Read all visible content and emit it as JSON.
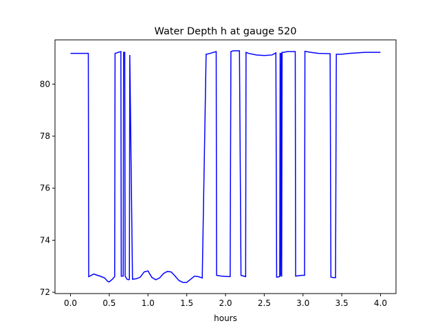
{
  "chart_data": {
    "type": "line",
    "title": "Water Depth h at gauge 520",
    "xlabel": "hours",
    "ylabel": "",
    "xlim": [
      -0.2,
      4.2
    ],
    "ylim": [
      71.95,
      81.7
    ],
    "xticks": [
      0.0,
      0.5,
      1.0,
      1.5,
      2.0,
      2.5,
      3.0,
      3.5,
      4.0
    ],
    "xtick_labels": [
      "0.0",
      "0.5",
      "1.0",
      "1.5",
      "2.0",
      "2.5",
      "3.0",
      "3.5",
      "4.0"
    ],
    "yticks": [
      72,
      74,
      76,
      78,
      80
    ],
    "ytick_labels": [
      "72",
      "74",
      "76",
      "78",
      "80"
    ],
    "grid": false,
    "line_color": "#0000ff",
    "series": [
      {
        "x": [
          0.0,
          0.12,
          0.23,
          0.235,
          0.3,
          0.38,
          0.44,
          0.48,
          0.5,
          0.54,
          0.57,
          0.575,
          0.65,
          0.655,
          0.68,
          0.685,
          0.7,
          0.705,
          0.73,
          0.75,
          0.76,
          0.765,
          0.8,
          0.85,
          0.9,
          0.95,
          1.0,
          1.05,
          1.1,
          1.15,
          1.2,
          1.25,
          1.3,
          1.35,
          1.4,
          1.45,
          1.5,
          1.55,
          1.6,
          1.65,
          1.7,
          1.75,
          1.755,
          1.8,
          1.88,
          1.885,
          1.95,
          2.05,
          2.06,
          2.07,
          2.1,
          2.18,
          2.2,
          2.26,
          2.265,
          2.3,
          2.4,
          2.5,
          2.6,
          2.65,
          2.66,
          2.7,
          2.705,
          2.71,
          2.72,
          2.725,
          2.73,
          2.75,
          2.8,
          2.9,
          2.905,
          2.98,
          3.02,
          3.025,
          3.1,
          3.2,
          3.35,
          3.36,
          3.4,
          3.42,
          3.43,
          3.5,
          3.6,
          3.8,
          4.0
        ],
        "y": [
          81.18,
          81.18,
          81.18,
          72.6,
          72.7,
          72.62,
          72.55,
          72.42,
          72.4,
          72.5,
          72.6,
          81.18,
          81.25,
          72.62,
          72.62,
          81.22,
          81.22,
          72.62,
          72.5,
          72.48,
          72.5,
          81.12,
          72.5,
          72.52,
          72.58,
          72.78,
          72.82,
          72.57,
          72.48,
          72.55,
          72.72,
          72.8,
          72.78,
          72.62,
          72.45,
          72.38,
          72.38,
          72.5,
          72.62,
          72.6,
          72.55,
          81.15,
          81.15,
          81.18,
          81.25,
          72.65,
          72.62,
          72.6,
          72.6,
          81.25,
          81.28,
          81.28,
          72.65,
          72.6,
          81.22,
          81.18,
          81.12,
          81.1,
          81.12,
          81.2,
          72.58,
          72.6,
          81.2,
          72.62,
          81.2,
          72.6,
          81.22,
          81.22,
          81.25,
          81.25,
          72.62,
          72.65,
          72.65,
          81.26,
          81.22,
          81.18,
          81.17,
          72.58,
          72.56,
          72.56,
          81.15,
          81.15,
          81.18,
          81.22,
          81.22
        ]
      }
    ]
  }
}
